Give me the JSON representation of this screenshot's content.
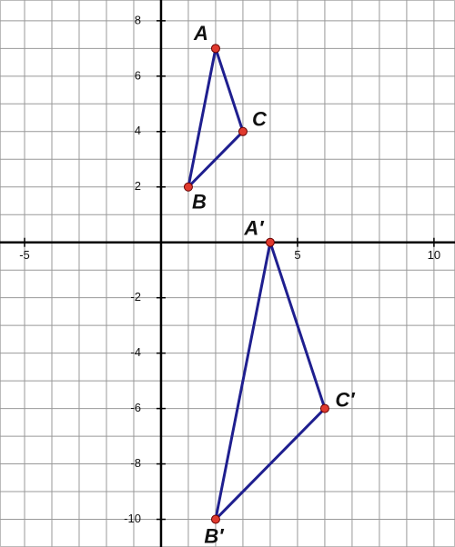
{
  "chart_data": {
    "type": "polygon",
    "xlim": [
      -5.9,
      10.77
    ],
    "ylim": [
      -11,
      8.75
    ],
    "xticks": [
      -5,
      5,
      10
    ],
    "yticks": [
      8,
      6,
      4,
      2,
      -2,
      -4,
      -6,
      -8,
      -10
    ],
    "xgrid": [
      -5,
      -4,
      -3,
      -2,
      -1,
      0,
      1,
      2,
      3,
      4,
      5,
      6,
      7,
      8,
      9,
      10
    ],
    "ygrid": [
      -10,
      -9,
      -8,
      -7,
      -6,
      -5,
      -4,
      -3,
      -2,
      -1,
      0,
      1,
      2,
      3,
      4,
      5,
      6,
      7,
      8
    ],
    "grid": true,
    "line_color": "#1f1f8f",
    "point_color": "#e03a2e",
    "series": [
      {
        "x": [
          2,
          1,
          3
        ],
        "y": [
          7,
          2,
          4
        ],
        "labels": [
          "A",
          "B",
          "C"
        ]
      },
      {
        "x": [
          4,
          2,
          6
        ],
        "y": [
          0,
          -10,
          -6
        ],
        "labels": [
          "A′",
          "B′",
          "C′"
        ]
      }
    ]
  }
}
